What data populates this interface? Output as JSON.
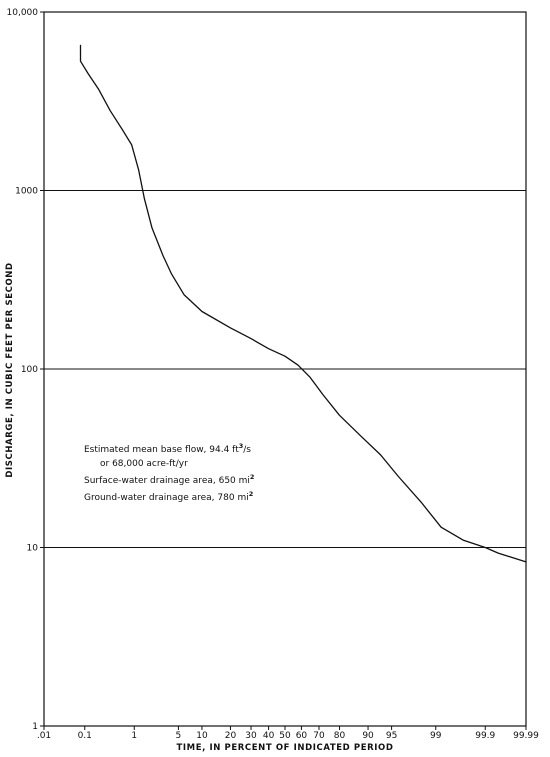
{
  "chart_data": {
    "type": "line",
    "title": "",
    "xlabel": "TIME, IN PERCENT OF INDICATED PERIOD",
    "ylabel": "DISCHARGE, IN CUBIC FEET PER SECOND",
    "x_scale": "probability",
    "y_scale": "log",
    "ylim": [
      1,
      10000
    ],
    "xlim": [
      0.01,
      99.99
    ],
    "grid": "horizontal lines at each decade",
    "x_ticks": [
      {
        "v": 0.01,
        "label": ".01"
      },
      {
        "v": 0.1,
        "label": "0.1"
      },
      {
        "v": 1,
        "label": "1"
      },
      {
        "v": 5,
        "label": "5"
      },
      {
        "v": 10,
        "label": "10"
      },
      {
        "v": 20,
        "label": "20"
      },
      {
        "v": 30,
        "label": "30"
      },
      {
        "v": 40,
        "label": "40"
      },
      {
        "v": 50,
        "label": "50"
      },
      {
        "v": 60,
        "label": "60"
      },
      {
        "v": 70,
        "label": "70"
      },
      {
        "v": 80,
        "label": "80"
      },
      {
        "v": 90,
        "label": "90"
      },
      {
        "v": 95,
        "label": "95"
      },
      {
        "v": 99,
        "label": "99"
      },
      {
        "v": 99.9,
        "label": "99.9"
      },
      {
        "v": 99.99,
        "label": "99.99"
      }
    ],
    "y_ticks": [
      {
        "v": 1,
        "label": "1"
      },
      {
        "v": 10,
        "label": "10"
      },
      {
        "v": 100,
        "label": "100"
      },
      {
        "v": 1000,
        "label": "1000"
      },
      {
        "v": 10000,
        "label": "10,000"
      }
    ],
    "series": [
      {
        "x": [
          0.08,
          0.08,
          0.12,
          0.2,
          0.35,
          0.6,
          0.9,
          1.2,
          1.5,
          2,
          3,
          4,
          6,
          10,
          20,
          30,
          40,
          50,
          58,
          65,
          72,
          80,
          88,
          93,
          96,
          98.2,
          99.2,
          99.7,
          99.9,
          99.95,
          99.99
        ],
        "y": [
          6500,
          5300,
          4500,
          3700,
          2800,
          2200,
          1800,
          1300,
          900,
          620,
          430,
          340,
          260,
          210,
          170,
          148,
          130,
          118,
          105,
          90,
          72,
          55,
          42,
          33,
          25,
          18,
          13,
          11,
          10,
          9.3,
          8.3
        ]
      }
    ],
    "annotations": [
      {
        "prefix": "Estimated mean base flow, 94.4 ft",
        "sup": "3",
        "suffix": "/s"
      },
      {
        "prefix": "or 68,000 acre-ft/yr",
        "sup": "",
        "suffix": ""
      },
      {
        "prefix": "Surface-water drainage area, 650 mi",
        "sup": "2",
        "suffix": ""
      },
      {
        "prefix": "Ground-water drainage area, 780 mi",
        "sup": "2",
        "suffix": ""
      }
    ]
  }
}
